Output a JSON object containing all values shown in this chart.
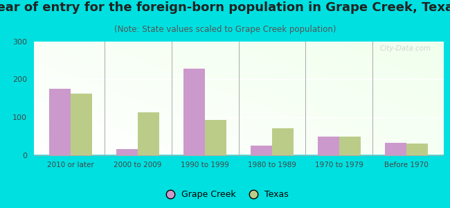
{
  "title": "Year of entry for the foreign-born population in Grape Creek, Texas",
  "subtitle": "(Note: State values scaled to Grape Creek population)",
  "categories": [
    "2010 or later",
    "2000 to 2009",
    "1990 to 1999",
    "1980 to 1989",
    "1970 to 1979",
    "Before 1970"
  ],
  "grape_creek": [
    175,
    15,
    228,
    25,
    48,
    33
  ],
  "texas": [
    163,
    112,
    93,
    70,
    48,
    30
  ],
  "grape_creek_color": "#cc99cc",
  "texas_color": "#bbcc88",
  "ylim": [
    0,
    300
  ],
  "yticks": [
    0,
    100,
    200,
    300
  ],
  "background_outer": "#00e0e0",
  "bar_width": 0.32,
  "legend_gc": "Grape Creek",
  "legend_tx": "Texas",
  "title_fontsize": 13,
  "subtitle_fontsize": 8.5,
  "watermark": "City-Data.com"
}
